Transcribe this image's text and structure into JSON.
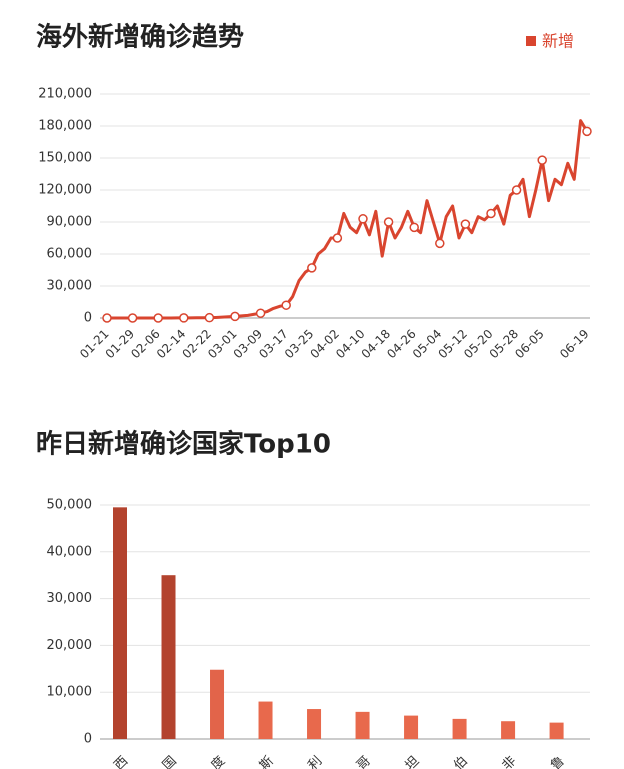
{
  "chart_data": [
    {
      "type": "line",
      "title": "海外新增确诊趋势",
      "categories": [
        "01-21",
        null,
        null,
        null,
        "01-29",
        null,
        null,
        null,
        "02-06",
        null,
        null,
        null,
        "02-14",
        null,
        null,
        null,
        "02-22",
        null,
        null,
        null,
        "03-01",
        null,
        null,
        null,
        "03-09",
        null,
        null,
        null,
        "03-17",
        null,
        null,
        null,
        "03-25",
        null,
        null,
        null,
        "04-02",
        null,
        null,
        null,
        "04-10",
        null,
        null,
        null,
        "04-18",
        null,
        null,
        null,
        "04-26",
        null,
        null,
        null,
        "05-04",
        null,
        null,
        null,
        "05-12",
        null,
        null,
        null,
        "05-20",
        null,
        null,
        null,
        "05-28",
        null,
        null,
        null,
        "06-05",
        null,
        null,
        null,
        null,
        null,
        null,
        "06-19"
      ],
      "series": [
        {
          "name": "新增",
          "color": "#d9452f",
          "values": [
            0,
            0,
            0,
            0,
            0,
            0,
            0,
            0,
            0,
            0,
            0,
            100,
            100,
            100,
            200,
            200,
            300,
            500,
            800,
            1200,
            1500,
            2000,
            2500,
            3500,
            4500,
            6000,
            9000,
            11000,
            12000,
            20000,
            35000,
            43000,
            47000,
            60000,
            65000,
            75000,
            75000,
            98000,
            85000,
            80000,
            93000,
            78000,
            100000,
            58000,
            90000,
            75000,
            85000,
            100000,
            85000,
            80000,
            110000,
            90000,
            70000,
            95000,
            105000,
            75000,
            88000,
            80000,
            95000,
            92000,
            98000,
            105000,
            88000,
            115000,
            120000,
            130000,
            95000,
            120000,
            148000,
            110000,
            130000,
            125000,
            145000,
            130000,
            185000,
            175000
          ]
        }
      ],
      "ylim": [
        0,
        210000
      ],
      "yticks": [
        0,
        {
          "value": 30000,
          "label": "30,000"
        },
        {
          "value": 60000,
          "label": "60,000"
        },
        {
          "value": 90000,
          "label": "90,000"
        },
        {
          "value": 120000,
          "label": "120,000"
        },
        {
          "value": 150000,
          "label": "150,000"
        },
        {
          "value": 180000,
          "label": "180,000"
        },
        {
          "value": 210000,
          "label": "210,000"
        }
      ],
      "grid": true,
      "legend": "top-right"
    },
    {
      "type": "bar",
      "title": "昨日新增确诊国家Top10",
      "categories": [
        "西",
        "国",
        "度",
        "斯",
        "利",
        "哥",
        "坦",
        "伯",
        "非",
        "鲁"
      ],
      "values": [
        49500,
        35000,
        14800,
        8000,
        6400,
        5800,
        5000,
        4300,
        3800,
        3500
      ],
      "colors": [
        "#b3432e",
        "#b3432e",
        "#e2644a",
        "#e8694c",
        "#e8694c",
        "#e8694c",
        "#e8694c",
        "#e8694c",
        "#e8694c",
        "#e8694c"
      ],
      "ylim": [
        0,
        50000
      ],
      "yticks": [
        0,
        {
          "value": 10000,
          "label": "10,000"
        },
        {
          "value": 20000,
          "label": "20,000"
        },
        {
          "value": 30000,
          "label": "30,000"
        },
        {
          "value": 40000,
          "label": "40,000"
        },
        {
          "value": 50000,
          "label": "50,000"
        }
      ],
      "grid": true
    }
  ]
}
